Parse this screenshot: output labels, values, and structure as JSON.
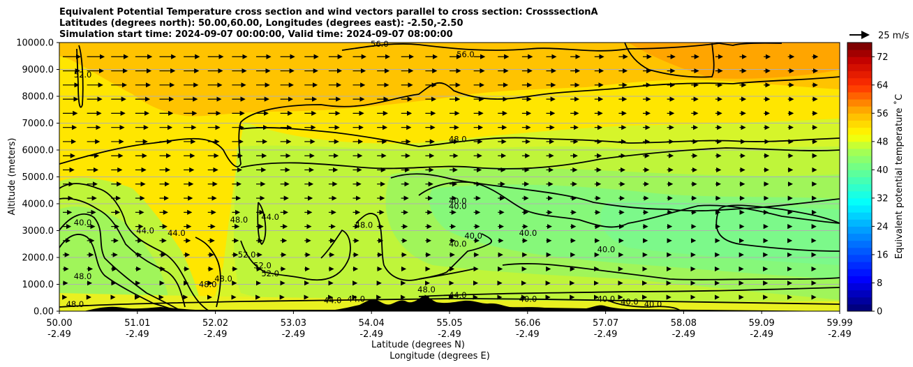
{
  "chart_data": {
    "type": "contourf",
    "title_lines": [
      "Equivalent Potential Temperature cross section and wind vectors parallel to cross section: CrosssectionA",
      "Latitudes (degrees north): 50.00,60.00, Longitudes (degrees east): -2.50,-2.50",
      "Simulation start time: 2024-09-07 00:00:00, Valid time: 2024-09-07 08:00:00"
    ],
    "xlabel": "Latitude (degrees N)",
    "xlabel2": "Longitude (degrees E)",
    "ylabel": "Altitude (meters)",
    "xlim": [
      50.0,
      59.99
    ],
    "ylim": [
      0,
      10000
    ],
    "x_ticks": [
      {
        "lat": "50.00",
        "lon": "-2.49"
      },
      {
        "lat": "51.01",
        "lon": "-2.49"
      },
      {
        "lat": "52.02",
        "lon": "-2.49"
      },
      {
        "lat": "53.03",
        "lon": "-2.49"
      },
      {
        "lat": "54.04",
        "lon": "-2.49"
      },
      {
        "lat": "55.05",
        "lon": "-2.49"
      },
      {
        "lat": "56.06",
        "lon": "-2.49"
      },
      {
        "lat": "57.07",
        "lon": "-2.49"
      },
      {
        "lat": "58.08",
        "lon": "-2.49"
      },
      {
        "lat": "59.09",
        "lon": "-2.49"
      },
      {
        "lat": "59.99",
        "lon": "-2.49"
      }
    ],
    "y_ticks": [
      "0.00",
      "1000.0",
      "2000.0",
      "3000.0",
      "4000.0",
      "5000.0",
      "6000.0",
      "7000.0",
      "8000.0",
      "9000.0",
      "10000.0"
    ],
    "y_tick_values": [
      0,
      1000,
      2000,
      3000,
      4000,
      5000,
      6000,
      7000,
      8000,
      9000,
      10000
    ],
    "grid": "horizontal",
    "colorbar": {
      "label": "Equivalent potential temperature ˚C",
      "ticks": [
        "0",
        "8",
        "16",
        "24",
        "32",
        "40",
        "48",
        "56",
        "64",
        "72"
      ],
      "tick_values": [
        0,
        8,
        16,
        24,
        32,
        40,
        48,
        56,
        64,
        72
      ],
      "range": [
        0,
        76
      ],
      "colormap": "jet"
    },
    "quiver_key": {
      "label": "25 m/s",
      "value": 25
    },
    "contour_labels": [
      {
        "text": "56.0",
        "lat": 54.1,
        "alt": 9850
      },
      {
        "text": "56.0",
        "lat": 55.2,
        "alt": 9450
      },
      {
        "text": "52.0",
        "lat": 50.3,
        "alt": 8700
      },
      {
        "text": "48.0",
        "lat": 55.1,
        "alt": 6300
      },
      {
        "text": "40.0",
        "lat": 55.1,
        "alt": 4000
      },
      {
        "text": "40.0",
        "lat": 55.1,
        "alt": 3800
      },
      {
        "text": "40.0",
        "lat": 50.3,
        "alt": 3200
      },
      {
        "text": "44.0",
        "lat": 51.1,
        "alt": 2900
      },
      {
        "text": "44.0",
        "lat": 51.5,
        "alt": 2800
      },
      {
        "text": "48.0",
        "lat": 52.3,
        "alt": 3300
      },
      {
        "text": "44.0",
        "lat": 52.7,
        "alt": 3400
      },
      {
        "text": "48.0",
        "lat": 53.9,
        "alt": 3100
      },
      {
        "text": "40.0",
        "lat": 56.0,
        "alt": 2800
      },
      {
        "text": "40.0",
        "lat": 55.3,
        "alt": 2700
      },
      {
        "text": "40.0",
        "lat": 55.1,
        "alt": 2400
      },
      {
        "text": "40.0",
        "lat": 57.0,
        "alt": 2200
      },
      {
        "text": "52.0",
        "lat": 52.4,
        "alt": 2000
      },
      {
        "text": "52.0",
        "lat": 52.6,
        "alt": 1600
      },
      {
        "text": "52.0",
        "lat": 52.7,
        "alt": 1300
      },
      {
        "text": "48.0",
        "lat": 50.3,
        "alt": 1200
      },
      {
        "text": "48.0",
        "lat": 52.1,
        "alt": 1100
      },
      {
        "text": "48.0",
        "lat": 51.9,
        "alt": 900
      },
      {
        "text": "48.0",
        "lat": 54.7,
        "alt": 700
      },
      {
        "text": "44.0",
        "lat": 55.1,
        "alt": 500
      },
      {
        "text": "48.0",
        "lat": 50.2,
        "alt": 150
      },
      {
        "text": "44.0",
        "lat": 53.5,
        "alt": 300
      },
      {
        "text": "44.0",
        "lat": 53.8,
        "alt": 350
      },
      {
        "text": "40.0",
        "lat": 56.0,
        "alt": 350
      },
      {
        "text": "40.0",
        "lat": 57.0,
        "alt": 350
      },
      {
        "text": "40.0",
        "lat": 57.3,
        "alt": 250
      },
      {
        "text": "40.0",
        "lat": 57.6,
        "alt": 150
      }
    ]
  }
}
